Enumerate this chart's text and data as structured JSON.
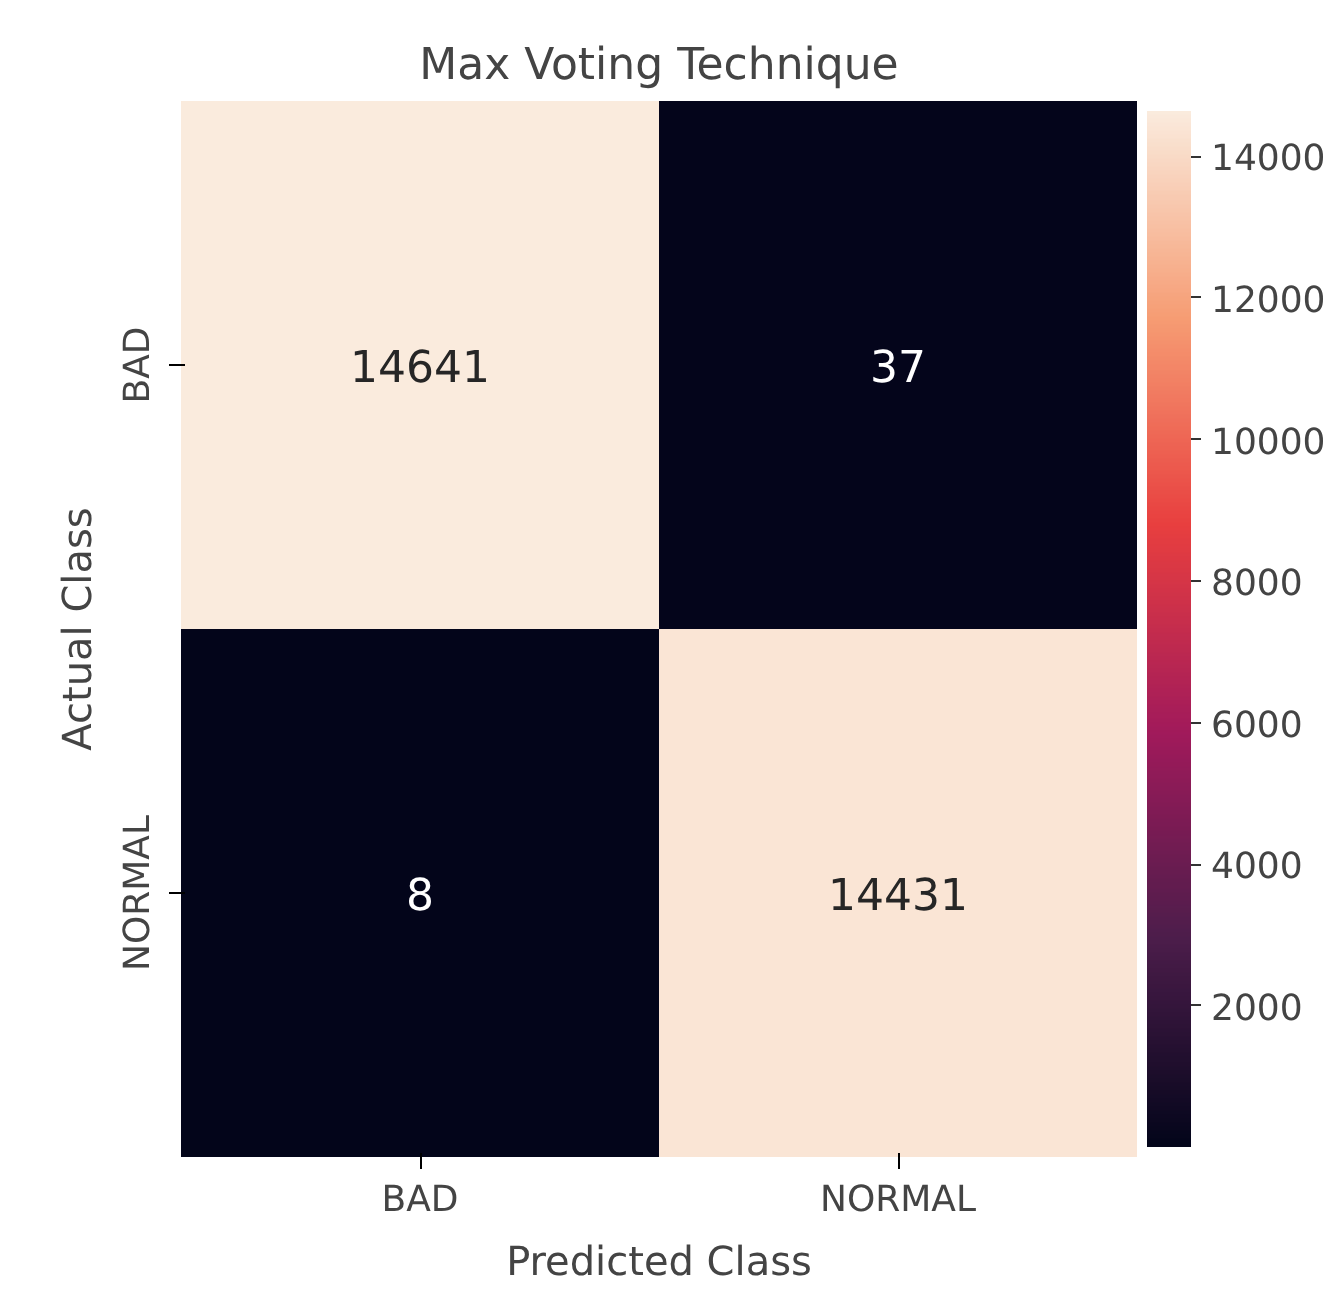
{
  "chart_data": {
    "type": "heatmap",
    "title": "Max Voting Technique",
    "xlabel": "Predicted Class",
    "ylabel": "Actual Class",
    "categories": [
      "BAD",
      "NORMAL"
    ],
    "y_categories": [
      "BAD",
      "NORMAL"
    ],
    "cells": [
      [
        14641,
        37
      ],
      [
        8,
        14431
      ]
    ],
    "clim": [
      8,
      14641
    ],
    "cticks": [
      2000,
      4000,
      6000,
      8000,
      10000,
      12000,
      14000
    ],
    "data_labels": true
  }
}
